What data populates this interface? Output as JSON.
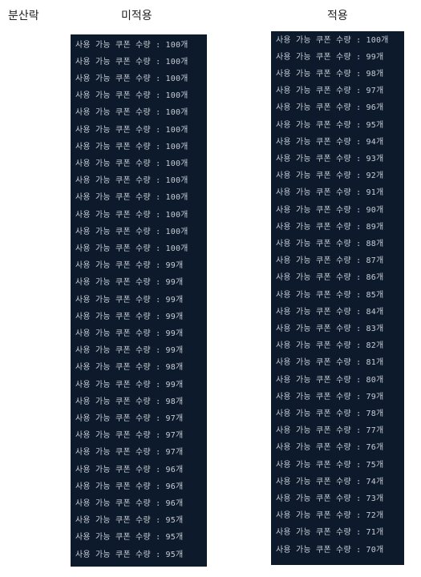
{
  "headings": {
    "left": "분산락",
    "middle": "미적용",
    "right": "적용"
  },
  "left_console": {
    "lines": [
      "사용 가능 쿠폰 수량 : 100개",
      "사용 가능 쿠폰 수량 : 100개",
      "사용 가능 쿠폰 수량 : 100개",
      "사용 가능 쿠폰 수량 : 100개",
      "사용 가능 쿠폰 수량 : 100개",
      "사용 가능 쿠폰 수량 : 100개",
      "사용 가능 쿠폰 수량 : 100개",
      "사용 가능 쿠폰 수량 : 100개",
      "사용 가능 쿠폰 수량 : 100개",
      "사용 가능 쿠폰 수량 : 100개",
      "사용 가능 쿠폰 수량 : 100개",
      "사용 가능 쿠폰 수량 : 100개",
      "사용 가능 쿠폰 수량 : 100개",
      "사용 가능 쿠폰 수량 : 99개",
      "사용 가능 쿠폰 수량 : 99개",
      "사용 가능 쿠폰 수량 : 99개",
      "사용 가능 쿠폰 수량 : 99개",
      "사용 가능 쿠폰 수량 : 99개",
      "사용 가능 쿠폰 수량 : 99개",
      "사용 가능 쿠폰 수량 : 98개",
      "사용 가능 쿠폰 수량 : 99개",
      "사용 가능 쿠폰 수량 : 98개",
      "사용 가능 쿠폰 수량 : 97개",
      "사용 가능 쿠폰 수량 : 97개",
      "사용 가능 쿠폰 수량 : 97개",
      "사용 가능 쿠폰 수량 : 96개",
      "사용 가능 쿠폰 수량 : 96개",
      "사용 가능 쿠폰 수량 : 96개",
      "사용 가능 쿠폰 수량 : 95개",
      "사용 가능 쿠폰 수량 : 95개",
      "사용 가능 쿠폰 수량 : 95개"
    ]
  },
  "right_console": {
    "lines": [
      "사용 가능 쿠폰 수량 : 100개",
      "사용 가능 쿠폰 수량 : 99개",
      "사용 가능 쿠폰 수량 : 98개",
      "사용 가능 쿠폰 수량 : 97개",
      "사용 가능 쿠폰 수량 : 96개",
      "사용 가능 쿠폰 수량 : 95개",
      "사용 가능 쿠폰 수량 : 94개",
      "사용 가능 쿠폰 수량 : 93개",
      "사용 가능 쿠폰 수량 : 92개",
      "사용 가능 쿠폰 수량 : 91개",
      "사용 가능 쿠폰 수량 : 90개",
      "사용 가능 쿠폰 수량 : 89개",
      "사용 가능 쿠폰 수량 : 88개",
      "사용 가능 쿠폰 수량 : 87개",
      "사용 가능 쿠폰 수량 : 86개",
      "사용 가능 쿠폰 수량 : 85개",
      "사용 가능 쿠폰 수량 : 84개",
      "사용 가능 쿠폰 수량 : 83개",
      "사용 가능 쿠폰 수량 : 82개",
      "사용 가능 쿠폰 수량 : 81개",
      "사용 가능 쿠폰 수량 : 80개",
      "사용 가능 쿠폰 수량 : 79개",
      "사용 가능 쿠폰 수량 : 78개",
      "사용 가능 쿠폰 수량 : 77개",
      "사용 가능 쿠폰 수량 : 76개",
      "사용 가능 쿠폰 수량 : 75개",
      "사용 가능 쿠폰 수량 : 74개",
      "사용 가능 쿠폰 수량 : 73개",
      "사용 가능 쿠폰 수량 : 72개",
      "사용 가능 쿠폰 수량 : 71개",
      "사용 가능 쿠폰 수량 : 70개"
    ]
  },
  "colors": {
    "console_background": "#0c1a2b",
    "console_text": "#c8cdd4",
    "heading_text": "#222222"
  }
}
